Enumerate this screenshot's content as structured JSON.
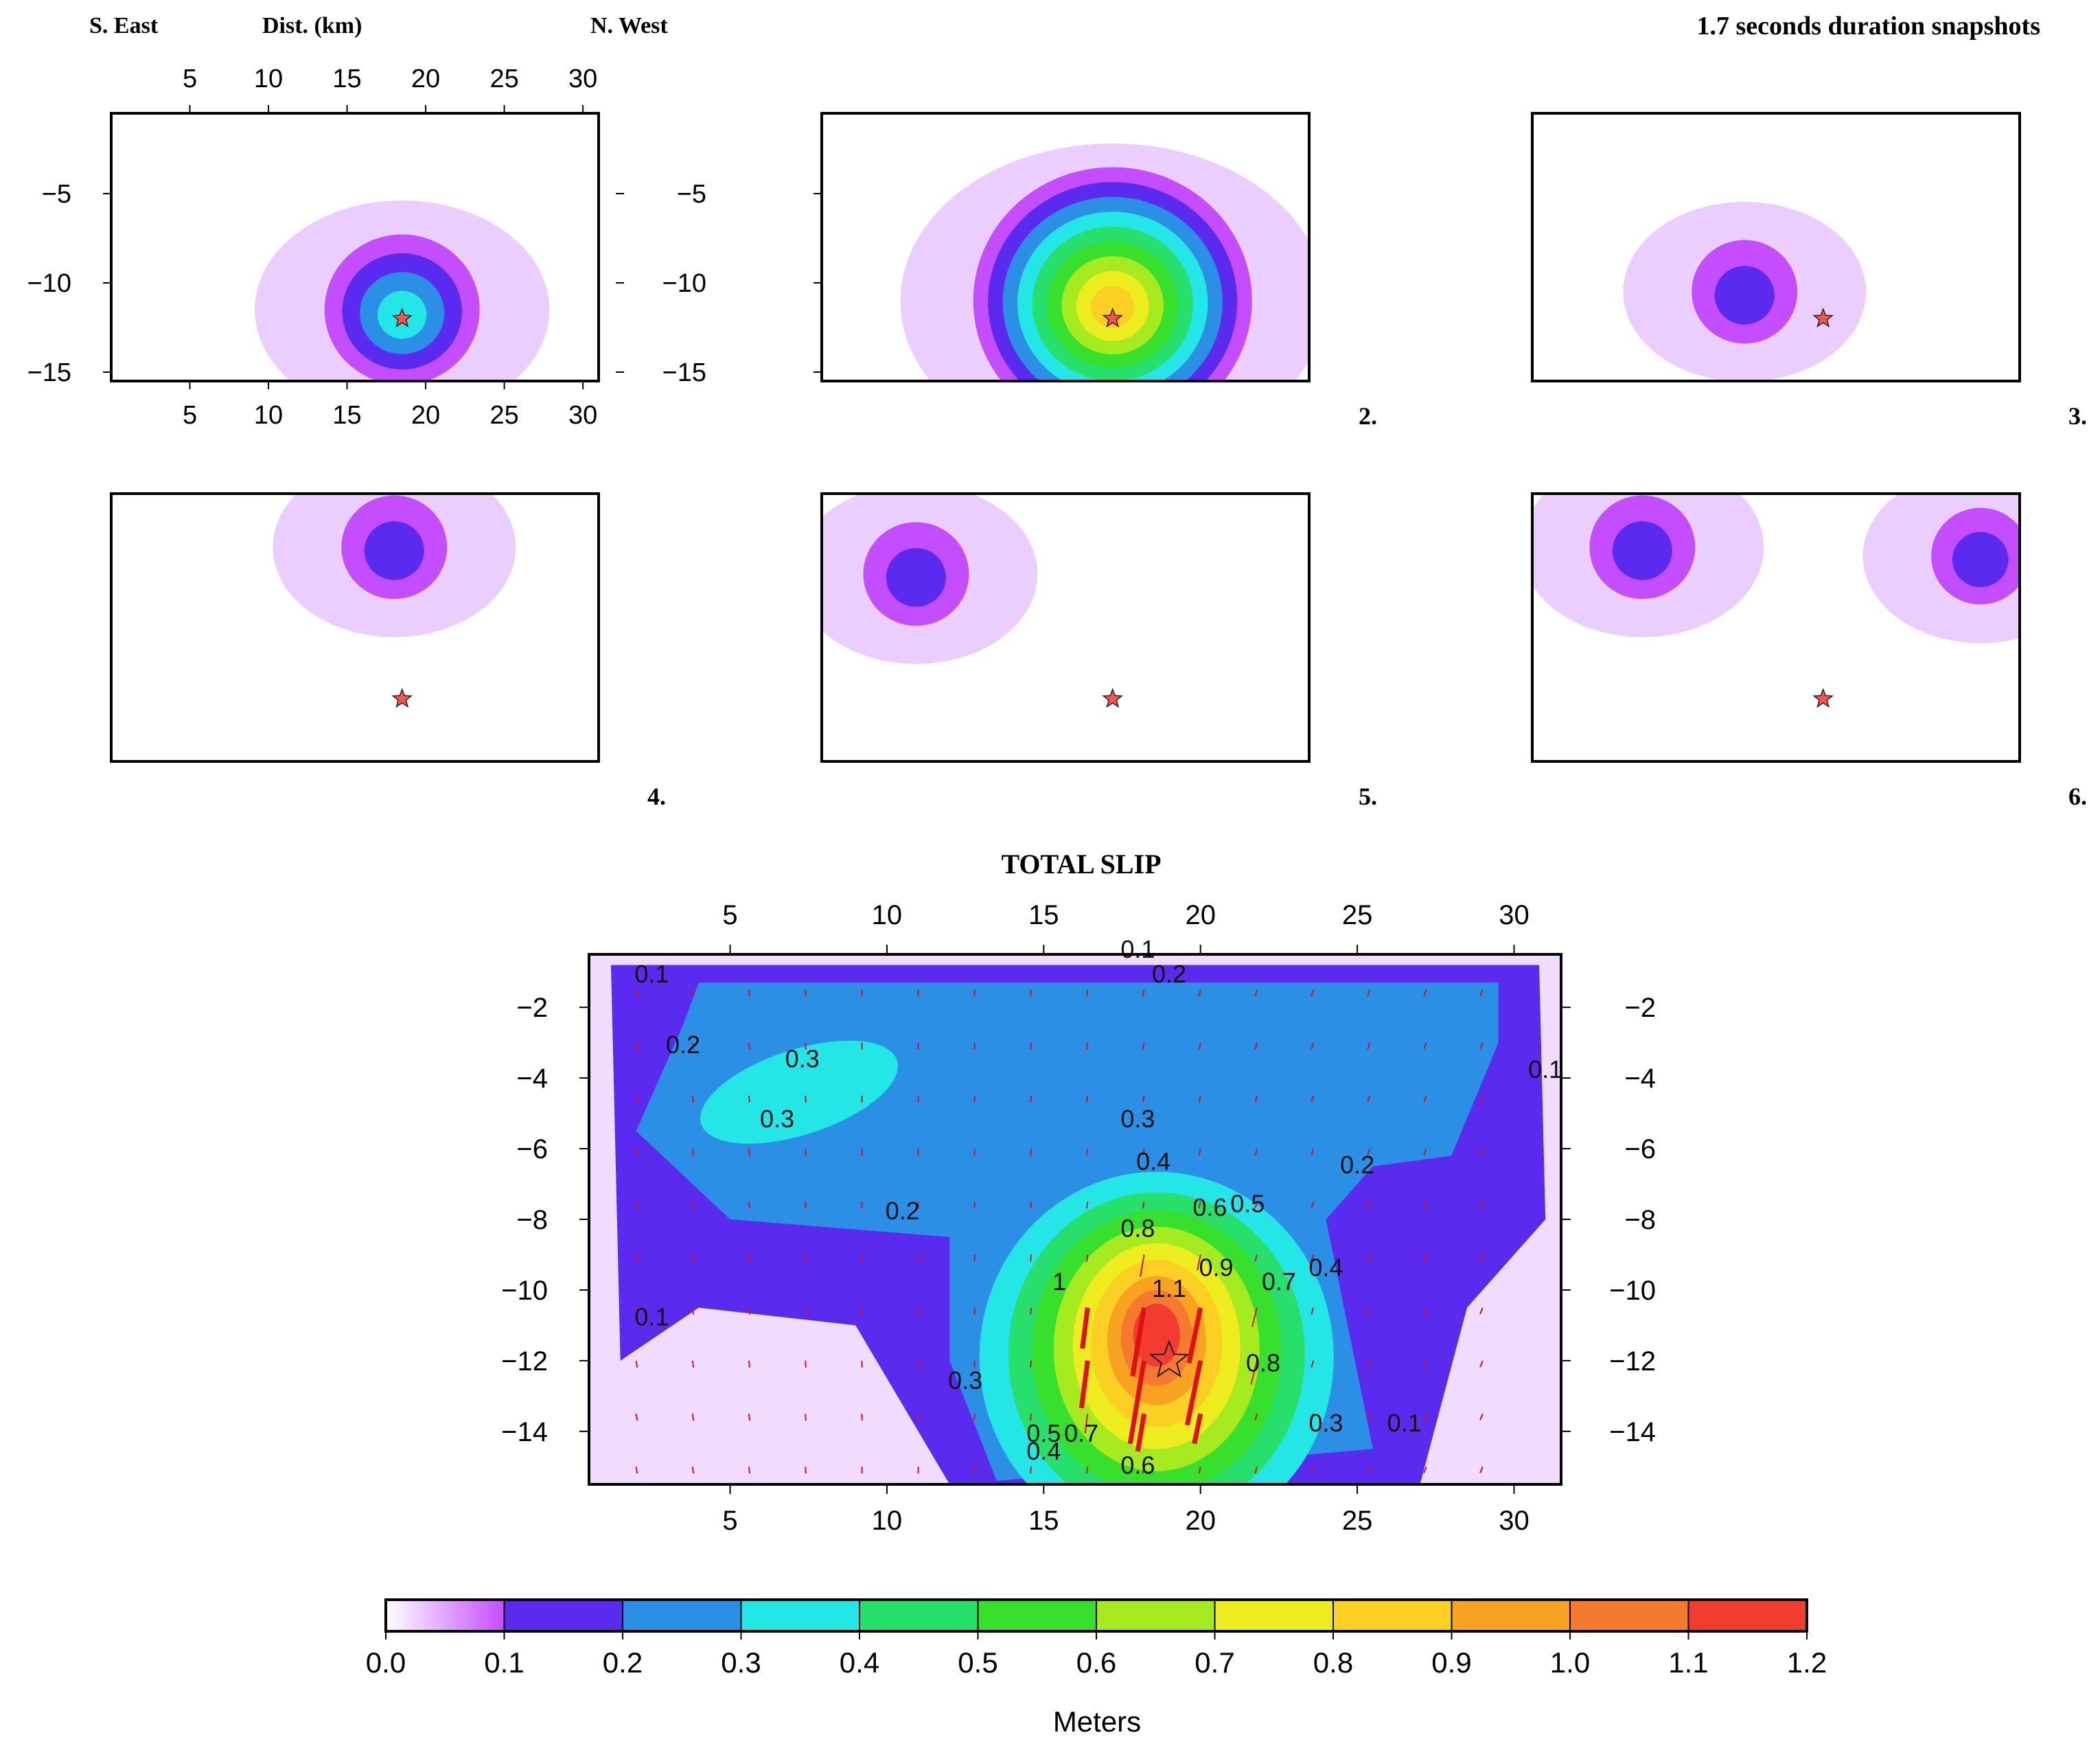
{
  "figure": {
    "header_left": "S. East",
    "header_mid": "Dist. (km)",
    "header_right": "N. West",
    "header_title": "1.7 seconds duration snapshots",
    "main_title": "TOTAL SLIP",
    "colorbar_label": "Meters",
    "snapshot_labels": [
      "2.",
      "3.",
      "4.",
      "5.",
      "6."
    ]
  },
  "colors": {
    "star": "#ff5050",
    "arrow": "#e01010",
    "frame": "#000000"
  },
  "chart_data": [
    {
      "type": "heatmap",
      "name": "snapshot-1",
      "title": "",
      "xlabel": "Dist. (km)",
      "ylabel": "",
      "xlim": [
        0,
        31
      ],
      "ylim": [
        -15.5,
        -0.5
      ],
      "xticks": [
        5,
        10,
        15,
        20,
        25,
        30
      ],
      "yticks": [
        -5,
        -10,
        -15
      ],
      "hypocenter": [
        18.5,
        -12
      ],
      "peak_slip_m": 0.35,
      "patches": [
        {
          "x": 18.5,
          "y": -11.5,
          "peak": 0.35
        }
      ]
    },
    {
      "type": "heatmap",
      "name": "snapshot-2",
      "label": "2.",
      "xlim": [
        0,
        31
      ],
      "ylim": [
        -15.5,
        -0.5
      ],
      "yticks": [
        -5,
        -10,
        -15
      ],
      "hypocenter": [
        18.5,
        -12
      ],
      "peak_slip_m": 0.85,
      "patches": [
        {
          "x": 18.5,
          "y": -11,
          "peak": 0.85
        }
      ]
    },
    {
      "type": "heatmap",
      "name": "snapshot-3",
      "label": "3.",
      "hypocenter": [
        18.5,
        -12
      ],
      "peak_slip_m": 0.15,
      "patches": [
        {
          "x": 13.5,
          "y": -10.5,
          "peak": 0.15
        }
      ]
    },
    {
      "type": "heatmap",
      "name": "snapshot-4",
      "label": "4.",
      "hypocenter": [
        18.5,
        -12
      ],
      "peak_slip_m": 0.15,
      "patches": [
        {
          "x": 18,
          "y": -3.5,
          "peak": 0.15
        }
      ]
    },
    {
      "type": "heatmap",
      "name": "snapshot-5",
      "label": "5.",
      "hypocenter": [
        18.5,
        -12
      ],
      "peak_slip_m": 0.15,
      "patches": [
        {
          "x": 6,
          "y": -5,
          "peak": 0.15
        }
      ]
    },
    {
      "type": "heatmap",
      "name": "snapshot-6",
      "label": "6.",
      "hypocenter": [
        18.5,
        -12
      ],
      "peak_slip_m": 0.15,
      "patches": [
        {
          "x": 7,
          "y": -3.5,
          "peak": 0.15
        },
        {
          "x": 28.5,
          "y": -4,
          "peak": 0.12
        }
      ]
    },
    {
      "type": "heatmap",
      "name": "total-slip",
      "title": "TOTAL SLIP",
      "xlim": [
        0.5,
        31.5
      ],
      "ylim": [
        -15.5,
        -0.5
      ],
      "xticks": [
        5,
        10,
        15,
        20,
        25,
        30
      ],
      "yticks": [
        -2,
        -4,
        -6,
        -8,
        -10,
        -12,
        -14
      ],
      "hypocenter": [
        19,
        -12
      ],
      "peak_slip_m": 1.15,
      "peak_location": [
        18.5,
        -11
      ],
      "contour_labels": [
        {
          "text": "0.1",
          "x": 2.5,
          "y": -1.3
        },
        {
          "text": "0.1",
          "x": 18,
          "y": -0.6
        },
        {
          "text": "0.2",
          "x": 19,
          "y": -1.3
        },
        {
          "text": "0.2",
          "x": 3.5,
          "y": -3.3
        },
        {
          "text": "0.3",
          "x": 7.3,
          "y": -3.7
        },
        {
          "text": "0.3",
          "x": 6.5,
          "y": -5.4
        },
        {
          "text": "0.3",
          "x": 18,
          "y": -5.4
        },
        {
          "text": "0.4",
          "x": 18.5,
          "y": -6.6
        },
        {
          "text": "0.6",
          "x": 20.3,
          "y": -7.9
        },
        {
          "text": "0.5",
          "x": 21.5,
          "y": -7.8
        },
        {
          "text": "0.8",
          "x": 18,
          "y": -8.5
        },
        {
          "text": "0.9",
          "x": 20.5,
          "y": -9.6
        },
        {
          "text": "0.7",
          "x": 22.5,
          "y": -10
        },
        {
          "text": "0.4",
          "x": 24,
          "y": -9.6
        },
        {
          "text": "1",
          "x": 15.5,
          "y": -10
        },
        {
          "text": "1.1",
          "x": 19,
          "y": -10.2
        },
        {
          "text": "0.2",
          "x": 25,
          "y": -6.7
        },
        {
          "text": "0.2",
          "x": 10.5,
          "y": -8
        },
        {
          "text": "0.1",
          "x": 2.5,
          "y": -11
        },
        {
          "text": "0.1",
          "x": 31,
          "y": -4
        },
        {
          "text": "0.3",
          "x": 12.5,
          "y": -12.8
        },
        {
          "text": "0.8",
          "x": 22,
          "y": -12.3
        },
        {
          "text": "0.3",
          "x": 24,
          "y": -14
        },
        {
          "text": "0.1",
          "x": 26.5,
          "y": -14
        },
        {
          "text": "0.5",
          "x": 15,
          "y": -14.3
        },
        {
          "text": "0.4",
          "x": 15,
          "y": -14.8
        },
        {
          "text": "0.7",
          "x": 16.2,
          "y": -14.3
        },
        {
          "text": "0.6",
          "x": 18,
          "y": -15.2
        }
      ]
    },
    {
      "type": "colorbar",
      "name": "slip-colorbar",
      "label": "Meters",
      "ticks": [
        "0.0",
        "0.1",
        "0.2",
        "0.3",
        "0.4",
        "0.5",
        "0.6",
        "0.7",
        "0.8",
        "0.9",
        "1.0",
        "1.1",
        "1.2"
      ],
      "bins": [
        {
          "from": 0.0,
          "to": 0.1,
          "color": "#c44dff"
        },
        {
          "from": 0.1,
          "to": 0.2,
          "color": "#5a2bee"
        },
        {
          "from": 0.2,
          "to": 0.3,
          "color": "#2b8fe6"
        },
        {
          "from": 0.3,
          "to": 0.4,
          "color": "#25e6e6"
        },
        {
          "from": 0.4,
          "to": 0.5,
          "color": "#27e06c"
        },
        {
          "from": 0.5,
          "to": 0.6,
          "color": "#38e02e"
        },
        {
          "from": 0.6,
          "to": 0.7,
          "color": "#a6ea20"
        },
        {
          "from": 0.7,
          "to": 0.8,
          "color": "#ecec1e"
        },
        {
          "from": 0.8,
          "to": 0.9,
          "color": "#fcd022"
        },
        {
          "from": 0.9,
          "to": 1.0,
          "color": "#f8a222"
        },
        {
          "from": 1.0,
          "to": 1.1,
          "color": "#f37a2e"
        },
        {
          "from": 1.1,
          "to": 1.2,
          "color": "#f23c30"
        }
      ]
    }
  ]
}
